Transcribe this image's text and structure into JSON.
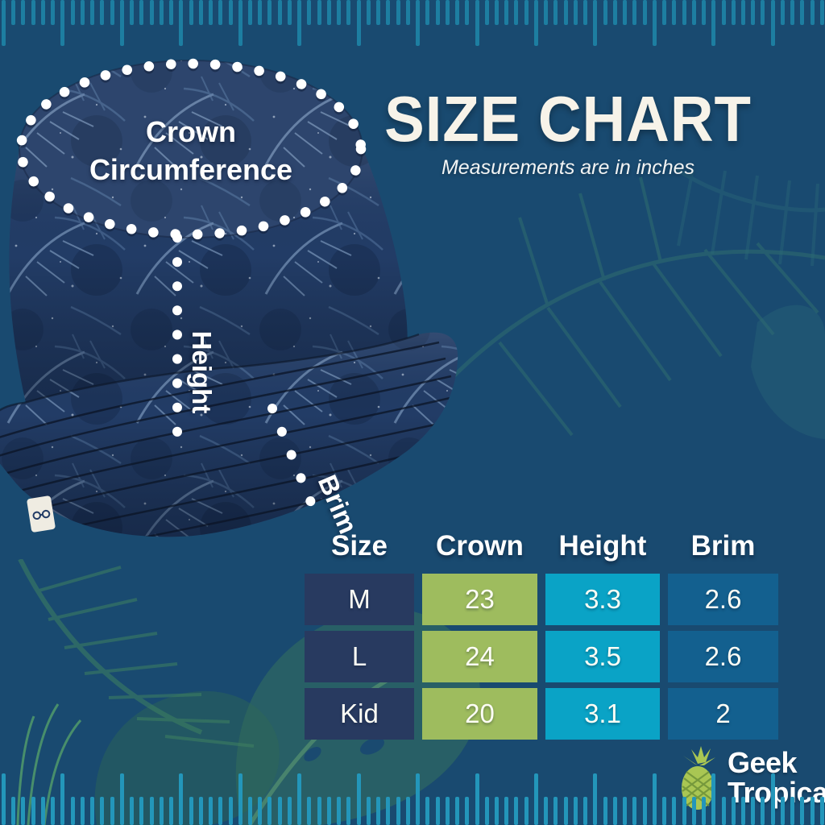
{
  "page": {
    "background": "#194a70"
  },
  "header": {
    "title": "SIZE CHART",
    "subtitle": "Measurements are in inches"
  },
  "hat_diagram": {
    "crown_label_line1": "Crown",
    "crown_label_line2": "Circumference",
    "height_label": "Height",
    "brim_label": "Brim"
  },
  "size_table": {
    "headers": [
      "Size",
      "Crown",
      "Height",
      "Brim"
    ],
    "rows": [
      [
        "M",
        "23",
        "3.3",
        "2.6"
      ],
      [
        "L",
        "24",
        "3.5",
        "2.6"
      ],
      [
        "Kid",
        "20",
        "3.1",
        "2"
      ]
    ],
    "cell_colors": {
      "size": "#283a60",
      "crown": "#9ebc5e",
      "height": "#0aa3c6",
      "brim": "#13608f"
    }
  },
  "brand": {
    "name_line1": "Geek",
    "name_line2": "Tropical",
    "pineapple_color": "#a9c653"
  },
  "decor": {
    "ruler_tick_color_top": "#1d7ea1",
    "ruler_tick_color_bottom": "#2396ba"
  },
  "chart_data": {
    "type": "table",
    "title": "SIZE CHART",
    "subtitle": "Measurements are in inches",
    "units": "inches",
    "columns": [
      "Size",
      "Crown",
      "Height",
      "Brim"
    ],
    "rows": [
      {
        "Size": "M",
        "Crown": 23,
        "Height": 3.3,
        "Brim": 2.6
      },
      {
        "Size": "L",
        "Crown": 24,
        "Height": 3.5,
        "Brim": 2.6
      },
      {
        "Size": "Kid",
        "Crown": 20,
        "Height": 3.1,
        "Brim": 2
      }
    ]
  }
}
